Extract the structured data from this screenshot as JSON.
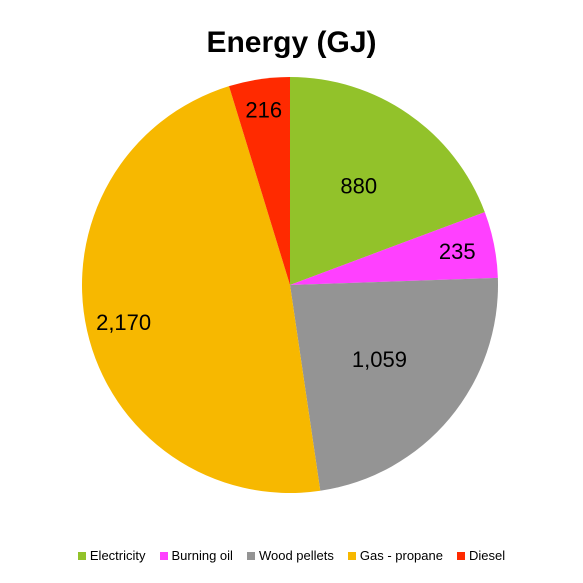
{
  "chart_data": {
    "type": "pie",
    "title": "Energy (GJ)",
    "categories": [
      "Electricity",
      "Burning oil",
      "Wood pellets",
      "Gas - propane",
      "Diesel"
    ],
    "values": [
      880,
      235,
      1059,
      2170,
      216
    ],
    "value_labels": [
      "880",
      "235",
      "1,059",
      "2,170",
      "216"
    ],
    "colors": [
      "#92C22A",
      "#FF40FF",
      "#949494",
      "#F7B800",
      "#FF2A00"
    ],
    "start_angle": "12 o'clock",
    "direction": "clockwise",
    "legend_position": "bottom"
  }
}
